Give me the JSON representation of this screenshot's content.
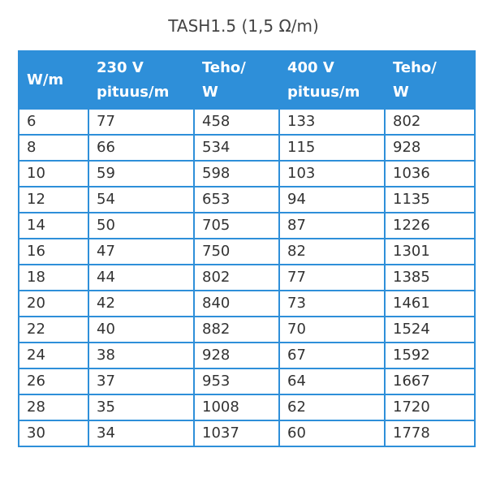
{
  "title": "TASH1.5 (1,5 Ω/m)",
  "table": {
    "header": [
      [
        "W/m"
      ],
      [
        "230 V",
        "pituus/m"
      ],
      [
        "Teho/",
        "W"
      ],
      [
        "400 V",
        "pituus/m"
      ],
      [
        "Teho/",
        "W"
      ]
    ],
    "rows": [
      [
        6,
        77,
        458,
        133,
        802
      ],
      [
        8,
        66,
        534,
        115,
        928
      ],
      [
        10,
        59,
        598,
        103,
        1036
      ],
      [
        12,
        54,
        653,
        94,
        1135
      ],
      [
        14,
        50,
        705,
        87,
        1226
      ],
      [
        16,
        47,
        750,
        82,
        1301
      ],
      [
        18,
        44,
        802,
        77,
        1385
      ],
      [
        20,
        42,
        840,
        73,
        1461
      ],
      [
        22,
        40,
        882,
        70,
        1524
      ],
      [
        24,
        38,
        928,
        67,
        1592
      ],
      [
        26,
        37,
        953,
        64,
        1667
      ],
      [
        28,
        35,
        1008,
        62,
        1720
      ],
      [
        30,
        34,
        1037,
        60,
        1778
      ]
    ]
  }
}
